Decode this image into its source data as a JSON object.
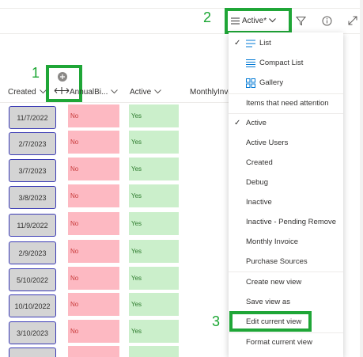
{
  "command_bar": {
    "view_label": "Active*",
    "filter_icon": "filter-icon",
    "info_icon": "info-icon",
    "expand_icon": "expand-icon"
  },
  "annotations": {
    "one": "1",
    "two": "2",
    "three": "3"
  },
  "columns": [
    {
      "label": "Created"
    },
    {
      "label": "AnnualBi..."
    },
    {
      "label": "Active"
    },
    {
      "label": "MonthlyInvo"
    }
  ],
  "rows": [
    {
      "created": "11/7/2022",
      "annual": "No",
      "active": "Yes"
    },
    {
      "created": "2/7/2023",
      "annual": "No",
      "active": "Yes"
    },
    {
      "created": "3/7/2023",
      "annual": "No",
      "active": "Yes"
    },
    {
      "created": "3/8/2023",
      "annual": "No",
      "active": "Yes"
    },
    {
      "created": "11/9/2022",
      "annual": "No",
      "active": "Yes"
    },
    {
      "created": "2/9/2023",
      "annual": "No",
      "active": "Yes"
    },
    {
      "created": "5/10/2022",
      "annual": "No",
      "active": "Yes"
    },
    {
      "created": "10/10/2022",
      "annual": "No",
      "active": "Yes"
    },
    {
      "created": "3/10/2023",
      "annual": "No",
      "active": "Yes"
    }
  ],
  "menu": {
    "layouts": [
      {
        "label": "List",
        "icon": "list-icon",
        "checked": true
      },
      {
        "label": "Compact List",
        "icon": "compact-list-icon",
        "checked": false
      },
      {
        "label": "Gallery",
        "icon": "gallery-icon",
        "checked": false
      }
    ],
    "views": [
      {
        "label": "Items that need attention",
        "checked": false
      },
      {
        "label": "Active",
        "checked": true
      },
      {
        "label": "Active Users",
        "checked": false
      },
      {
        "label": "Created",
        "checked": false
      },
      {
        "label": "Debug",
        "checked": false
      },
      {
        "label": "Inactive",
        "checked": false
      },
      {
        "label": "Inactive - Pending Remove",
        "checked": false
      },
      {
        "label": "Monthly Invoice",
        "checked": false
      },
      {
        "label": "Purchase Sources",
        "checked": false
      }
    ],
    "actions": [
      {
        "label": "Create new view"
      },
      {
        "label": "Save view as"
      },
      {
        "label": "Edit current view"
      },
      {
        "label": "Format current view"
      }
    ]
  },
  "colors": {
    "highlight": "#1fa637",
    "no_bg": "#fdb9c2",
    "yes_bg": "#cbefcb",
    "accent": "#0078d4"
  }
}
